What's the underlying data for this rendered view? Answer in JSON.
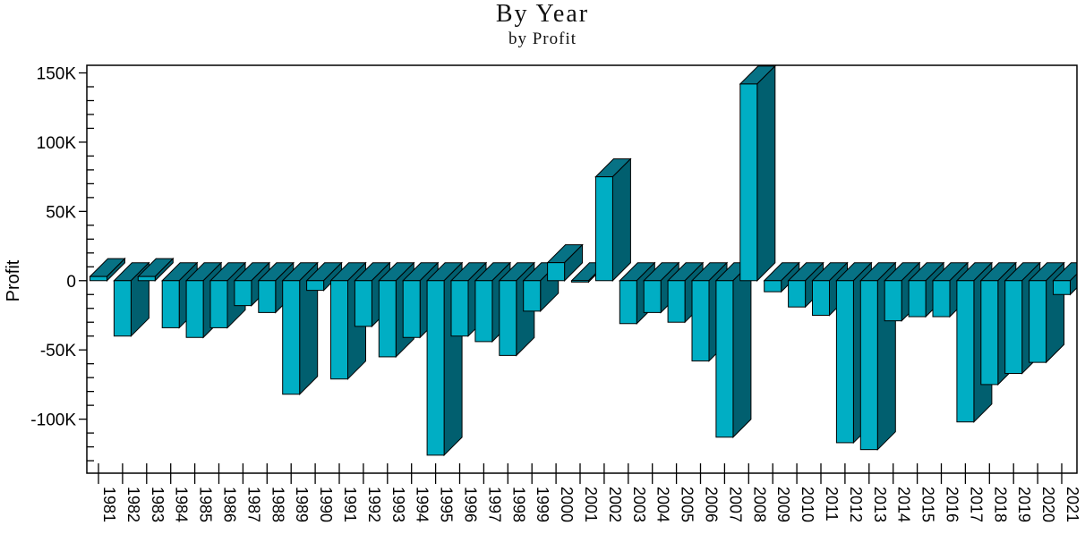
{
  "page": {
    "background": "#ffffff"
  },
  "chart_data": {
    "type": "bar",
    "variant": "3d-column",
    "title": "By Year",
    "subtitle": "by Profit",
    "ylabel": "Profit",
    "xlabel": "",
    "legend": "none",
    "grid": false,
    "categories": [
      "1981",
      "1982",
      "1983",
      "1984",
      "1985",
      "1986",
      "1987",
      "1988",
      "1989",
      "1990",
      "1991",
      "1992",
      "1993",
      "1994",
      "1995",
      "1996",
      "1997",
      "1998",
      "1999",
      "2000",
      "2001",
      "2002",
      "2003",
      "2004",
      "2005",
      "2006",
      "2007",
      "2008",
      "2009",
      "2010",
      "2011",
      "2012",
      "2013",
      "2014",
      "2015",
      "2016",
      "2017",
      "2018",
      "2019",
      "2020",
      "2021"
    ],
    "values": [
      3000,
      -40000,
      3000,
      -34000,
      -41000,
      -34000,
      -18000,
      -23000,
      -82000,
      -7000,
      -71000,
      -33000,
      -55000,
      -41000,
      -126000,
      -40000,
      -44000,
      -54000,
      -22000,
      13000,
      -1000,
      75000,
      -31000,
      -23000,
      -30000,
      -58000,
      -113000,
      142000,
      -8000,
      -19000,
      -25000,
      -117000,
      -122000,
      -29000,
      -26000,
      -26000,
      -102000,
      -75000,
      -67000,
      -59000,
      -10000
    ],
    "yticks": [
      {
        "label": "150K",
        "value": 150000
      },
      {
        "label": "100K",
        "value": 100000
      },
      {
        "label": "50K",
        "value": 50000
      },
      {
        "label": "0",
        "value": 0
      },
      {
        "label": "-50K",
        "value": -50000
      },
      {
        "label": "-100K",
        "value": -100000
      }
    ],
    "minor_tick_step": 10000,
    "ylim": [
      -139000,
      155500
    ],
    "colors": {
      "bar_front": "#00AEC4",
      "bar_side": "#015F6F",
      "bar_top": "#077285",
      "outline": "#000000",
      "axis": "#000000",
      "text": "#000000"
    }
  }
}
